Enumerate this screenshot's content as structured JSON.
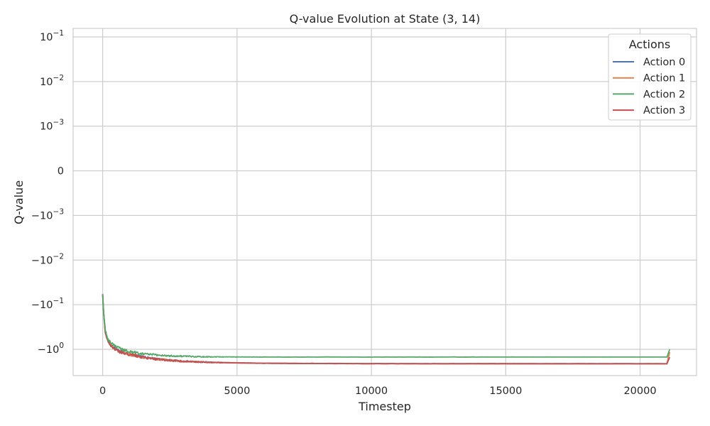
{
  "chart_data": {
    "type": "line",
    "title": "Q-value Evolution at State (3, 14)",
    "xlabel": "Timestep",
    "ylabel": "Q-value",
    "yscale": "symlog",
    "xlim": [
      -1100,
      22100
    ],
    "x_ticks": [
      0,
      5000,
      10000,
      15000,
      20000
    ],
    "x_tick_labels": [
      "0",
      "5000",
      "10000",
      "15000",
      "20000"
    ],
    "y_ticks": [
      0.1,
      0.01,
      0.001,
      0,
      -0.001,
      -0.01,
      -0.1,
      -1
    ],
    "y_tick_labels": [
      {
        "base": "10",
        "exp": "−1"
      },
      {
        "base": "10",
        "exp": "−2"
      },
      {
        "base": "10",
        "exp": "−3"
      },
      {
        "base": "0",
        "exp": ""
      },
      {
        "base": "−10",
        "exp": "−3"
      },
      {
        "base": "−10",
        "exp": "−2"
      },
      {
        "base": "−10",
        "exp": "−1"
      },
      {
        "base": "−10",
        "exp": "0"
      }
    ],
    "grid": true,
    "legend": {
      "title": "Actions",
      "position": "upper right"
    },
    "series": [
      {
        "name": "Action 0",
        "color": "#4c72b0",
        "x": [
          0,
          50,
          100,
          200,
          400,
          600,
          800,
          1000,
          1200,
          1500,
          2000,
          2500,
          3000,
          3500,
          4000,
          5000,
          6000,
          8000,
          10000,
          12000,
          15000,
          18000,
          21000,
          21100
        ],
        "y": [
          -0.06,
          -0.18,
          -0.4,
          -0.65,
          -0.9,
          -1.1,
          -1.2,
          -1.3,
          -1.36,
          -1.5,
          -1.65,
          -1.75,
          -1.85,
          -1.9,
          -1.95,
          -2.0,
          -2.05,
          -2.07,
          -2.09,
          -2.1,
          -2.1,
          -2.1,
          -2.1,
          -1.15
        ]
      },
      {
        "name": "Action 1",
        "color": "#dd8452",
        "x": [
          0,
          50,
          100,
          200,
          400,
          600,
          800,
          1000,
          1200,
          1500,
          2000,
          2500,
          3000,
          3500,
          4000,
          5000,
          6000,
          8000,
          10000,
          12000,
          15000,
          18000,
          21000,
          21100
        ],
        "y": [
          -0.06,
          -0.19,
          -0.41,
          -0.66,
          -0.92,
          -1.11,
          -1.22,
          -1.31,
          -1.37,
          -1.51,
          -1.66,
          -1.76,
          -1.86,
          -1.91,
          -1.96,
          -2.01,
          -2.05,
          -2.08,
          -2.09,
          -2.1,
          -2.1,
          -2.1,
          -2.1,
          -1.15
        ]
      },
      {
        "name": "Action 2",
        "color": "#55a868",
        "x": [
          0,
          50,
          100,
          200,
          400,
          600,
          800,
          1000,
          1200,
          1500,
          2000,
          2500,
          3000,
          3500,
          4000,
          5000,
          6000,
          8000,
          10000,
          12000,
          15000,
          18000,
          21000,
          21100
        ],
        "y": [
          -0.06,
          -0.18,
          -0.38,
          -0.6,
          -0.82,
          -0.95,
          -1.05,
          -1.12,
          -1.18,
          -1.25,
          -1.34,
          -1.4,
          -1.43,
          -1.46,
          -1.47,
          -1.48,
          -1.49,
          -1.49,
          -1.49,
          -1.49,
          -1.49,
          -1.49,
          -1.49,
          -1.0
        ]
      },
      {
        "name": "Action 3",
        "color": "#c44e52",
        "x": [
          0,
          50,
          100,
          200,
          400,
          600,
          800,
          1000,
          1200,
          1500,
          2000,
          2500,
          3000,
          3500,
          4000,
          5000,
          6000,
          8000,
          10000,
          12000,
          15000,
          18000,
          21000,
          21100
        ],
        "y": [
          -0.06,
          -0.19,
          -0.42,
          -0.67,
          -0.93,
          -1.12,
          -1.22,
          -1.32,
          -1.38,
          -1.52,
          -1.67,
          -1.77,
          -1.87,
          -1.92,
          -1.97,
          -2.02,
          -2.06,
          -2.08,
          -2.1,
          -2.1,
          -2.1,
          -2.11,
          -2.11,
          -1.5
        ]
      }
    ]
  }
}
